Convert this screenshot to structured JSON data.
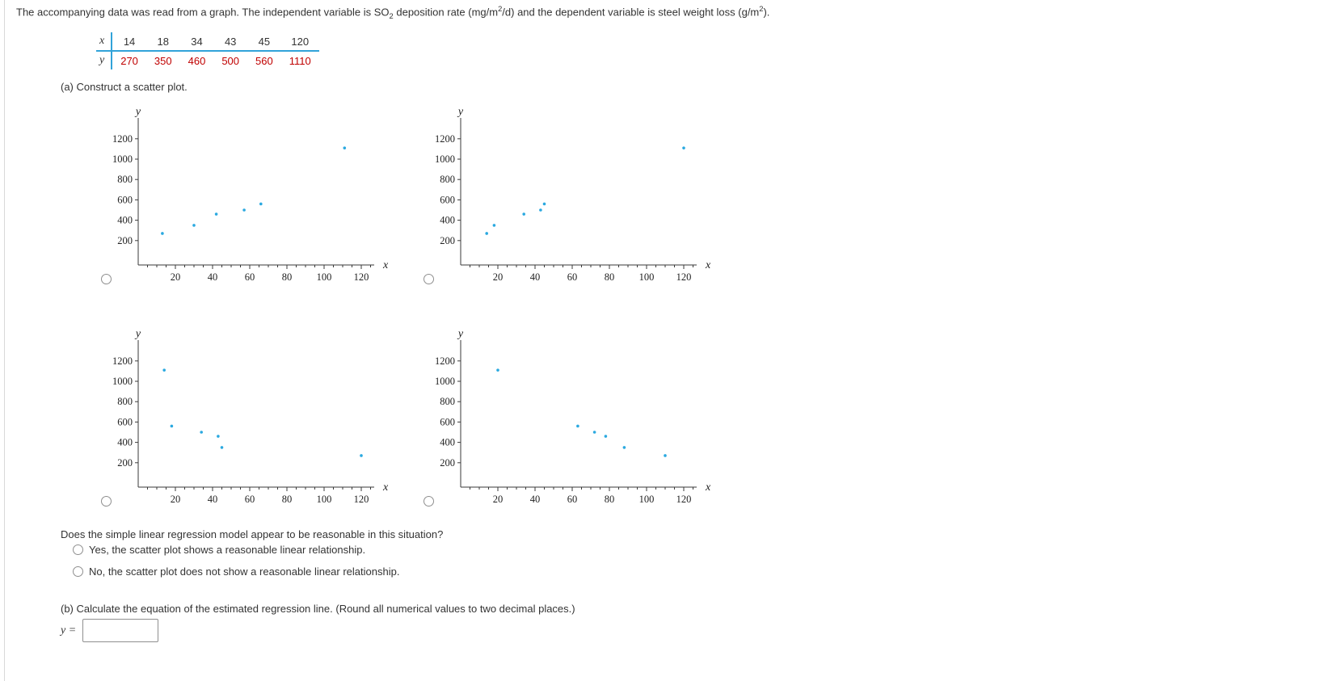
{
  "problem": {
    "intro_part1": "The accompanying data was read from a graph. The independent variable is SO",
    "intro_sub1": "2",
    "intro_part2": " deposition rate (mg/m",
    "intro_sup1": "2",
    "intro_part3": "/d) and the dependent variable is steel weight loss (g/m",
    "intro_sup2": "2",
    "intro_part4": ")."
  },
  "data_table": {
    "x_label": "x",
    "y_label": "y",
    "x_values": [
      "14",
      "18",
      "34",
      "43",
      "45",
      "120"
    ],
    "y_values": [
      "270",
      "350",
      "460",
      "500",
      "560",
      "1110"
    ]
  },
  "part_a": {
    "label": "(a) Construct a scatter plot."
  },
  "regression_question": {
    "text": "Does the simple linear regression model appear to be reasonable in this situation?",
    "option_yes": "Yes, the scatter plot shows a reasonable linear relationship.",
    "option_no": "No, the scatter plot does not show a reasonable linear relationship."
  },
  "part_b": {
    "label": "(b) Calculate the equation of the estimated regression line. (Round all numerical values to two decimal places.)",
    "equation_prefix": "y =",
    "answer_value": ""
  },
  "colors": {
    "text": "#333333",
    "table_line_blue": "#31a3d9",
    "y_value_red": "#c00000",
    "point_blue": "#2ba9e0",
    "axis_gray": "#3a3a3a"
  },
  "chart_data": [
    {
      "type": "scatter",
      "option": "A-top-left",
      "x": [
        13,
        30,
        42,
        57,
        66,
        111
      ],
      "y": [
        270,
        350,
        460,
        500,
        560,
        1110
      ],
      "xlabel": "x",
      "ylabel": "y",
      "xlim": [
        0,
        127
      ],
      "ylim": [
        0,
        1300
      ],
      "xticks": [
        20,
        40,
        60,
        80,
        100,
        120
      ],
      "yticks": [
        200,
        400,
        600,
        800,
        1000,
        1200
      ],
      "grid": false,
      "legend": false
    },
    {
      "type": "scatter",
      "option": "B-top-right",
      "x": [
        14,
        18,
        34,
        43,
        45,
        120
      ],
      "y": [
        270,
        350,
        460,
        500,
        560,
        1110
      ],
      "xlabel": "x",
      "ylabel": "y",
      "xlim": [
        0,
        127
      ],
      "ylim": [
        0,
        1300
      ],
      "xticks": [
        20,
        40,
        60,
        80,
        100,
        120
      ],
      "yticks": [
        200,
        400,
        600,
        800,
        1000,
        1200
      ],
      "grid": false,
      "legend": false
    },
    {
      "type": "scatter",
      "option": "C-bottom-left",
      "x": [
        14,
        18,
        34,
        43,
        45,
        120
      ],
      "y": [
        1110,
        560,
        500,
        460,
        350,
        270
      ],
      "xlabel": "x",
      "ylabel": "y",
      "xlim": [
        0,
        127
      ],
      "ylim": [
        0,
        1300
      ],
      "xticks": [
        20,
        40,
        60,
        80,
        100,
        120
      ],
      "yticks": [
        200,
        400,
        600,
        800,
        1000,
        1200
      ],
      "grid": false,
      "legend": false
    },
    {
      "type": "scatter",
      "option": "D-bottom-right",
      "x": [
        20,
        63,
        72,
        78,
        88,
        110
      ],
      "y": [
        1110,
        560,
        500,
        460,
        350,
        270
      ],
      "xlabel": "x",
      "ylabel": "y",
      "xlim": [
        0,
        127
      ],
      "ylim": [
        0,
        1300
      ],
      "xticks": [
        20,
        40,
        60,
        80,
        100,
        120
      ],
      "yticks": [
        200,
        400,
        600,
        800,
        1000,
        1200
      ],
      "grid": false,
      "legend": false
    }
  ]
}
